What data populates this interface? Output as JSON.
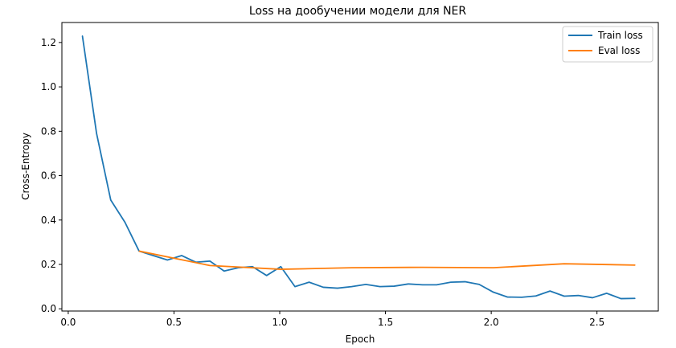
{
  "chart_data": {
    "type": "line",
    "title": "Loss на дообучении модели для NER",
    "xlabel": "Epoch",
    "ylabel": "Cross-Entropy",
    "xlim": [
      -0.03,
      2.79
    ],
    "ylim": [
      -0.01,
      1.29
    ],
    "xticks": [
      0.0,
      0.5,
      1.0,
      1.5,
      2.0,
      2.5
    ],
    "xtick_labels": [
      "0.0",
      "0.5",
      "1.0",
      "1.5",
      "2.0",
      "2.5"
    ],
    "yticks": [
      0.0,
      0.2,
      0.4,
      0.6,
      0.8,
      1.0,
      1.2
    ],
    "ytick_labels": [
      "0.0",
      "0.2",
      "0.4",
      "0.6",
      "0.8",
      "1.0",
      "1.2"
    ],
    "grid": false,
    "legend_position": "top-right",
    "series": [
      {
        "name": "Train loss",
        "color": "#1f77b4",
        "x": [
          0.067,
          0.134,
          0.201,
          0.268,
          0.335,
          0.402,
          0.469,
          0.536,
          0.603,
          0.67,
          0.737,
          0.804,
          0.871,
          0.938,
          1.005,
          1.072,
          1.139,
          1.206,
          1.273,
          1.34,
          1.407,
          1.474,
          1.541,
          1.608,
          1.675,
          1.742,
          1.809,
          1.876,
          1.943,
          2.01,
          2.077,
          2.144,
          2.211,
          2.278,
          2.345,
          2.412,
          2.479,
          2.546,
          2.613,
          2.68
        ],
        "y": [
          1.23,
          0.79,
          0.49,
          0.39,
          0.26,
          0.24,
          0.22,
          0.24,
          0.21,
          0.215,
          0.17,
          0.185,
          0.19,
          0.15,
          0.19,
          0.1,
          0.12,
          0.097,
          0.093,
          0.1,
          0.11,
          0.1,
          0.102,
          0.112,
          0.108,
          0.108,
          0.12,
          0.122,
          0.11,
          0.075,
          0.053,
          0.052,
          0.058,
          0.08,
          0.057,
          0.06,
          0.05,
          0.07,
          0.046,
          0.047
        ]
      },
      {
        "name": "Eval loss",
        "color": "#ff7f0e",
        "x": [
          0.335,
          0.67,
          1.005,
          1.34,
          1.675,
          2.01,
          2.345,
          2.68
        ],
        "y": [
          0.26,
          0.195,
          0.178,
          0.185,
          0.187,
          0.185,
          0.203,
          0.197
        ]
      }
    ]
  }
}
